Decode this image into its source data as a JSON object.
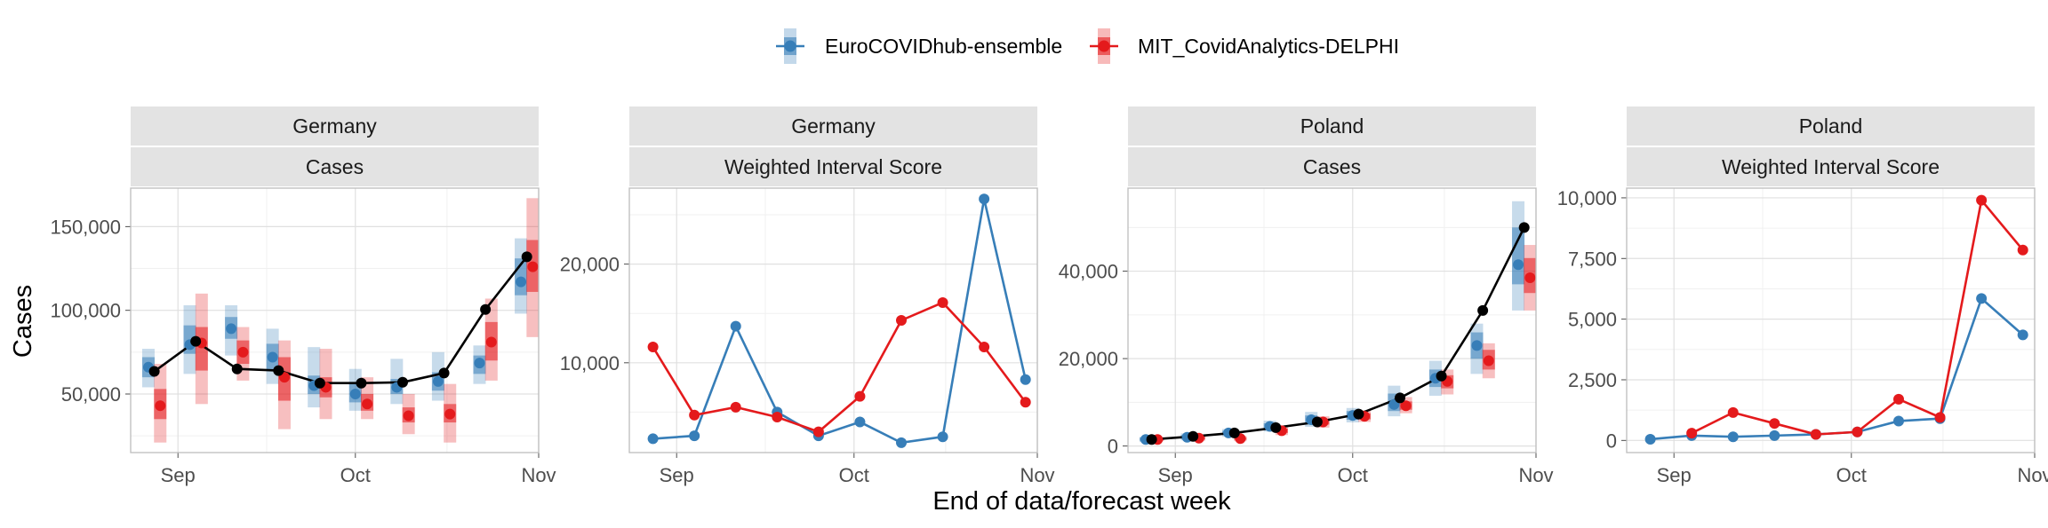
{
  "legend": {
    "items": [
      {
        "label": "EuroCOVIDhub-ensemble",
        "color": "#377eb8"
      },
      {
        "label": "MIT_CovidAnalytics-DELPHI",
        "color": "#e41a1c"
      }
    ]
  },
  "axes": {
    "xlabel": "End of data/forecast week",
    "ylabel": "Cases"
  },
  "chart_data": [
    {
      "type": "line",
      "strip": [
        "Germany",
        "Cases"
      ],
      "x_ticks": [
        {
          "label": "Sep",
          "date": "2021-09-01"
        },
        {
          "label": "Oct",
          "date": "2021-10-01"
        },
        {
          "label": "Nov",
          "date": "2021-11-01"
        }
      ],
      "x_range": [
        "2021-08-24",
        "2021-11-01"
      ],
      "ylim": [
        15000,
        173000
      ],
      "y_ticks": [
        {
          "value": 50000,
          "label": "50,000"
        },
        {
          "value": 100000,
          "label": "100,000"
        },
        {
          "value": 150000,
          "label": "150,000"
        }
      ],
      "observed": {
        "color": "#000000",
        "x": [
          "2021-08-28",
          "2021-09-04",
          "2021-09-11",
          "2021-09-18",
          "2021-09-25",
          "2021-10-02",
          "2021-10-09",
          "2021-10-16",
          "2021-10-23",
          "2021-10-30"
        ],
        "y": [
          63500,
          81500,
          65000,
          64000,
          56500,
          56500,
          57000,
          62500,
          100500,
          132000
        ]
      },
      "series": [
        {
          "name": "EuroCOVIDhub-ensemble",
          "x": [
            "2021-08-27",
            "2021-09-03",
            "2021-09-10",
            "2021-09-17",
            "2021-09-24",
            "2021-10-01",
            "2021-10-08",
            "2021-10-15",
            "2021-10-22",
            "2021-10-29"
          ],
          "median": [
            66000,
            79500,
            89000,
            72000,
            55000,
            50000,
            54000,
            57500,
            68500,
            117000
          ],
          "q50": [
            [
              60000,
              72000
            ],
            [
              74000,
              91000
            ],
            [
              83000,
              96000
            ],
            [
              64000,
              80000
            ],
            [
              50000,
              61000
            ],
            [
              45000,
              56000
            ],
            [
              50000,
              59000
            ],
            [
              52000,
              63000
            ],
            [
              62000,
              73000
            ],
            [
              109000,
              131000
            ]
          ],
          "q90": [
            [
              54000,
              77000
            ],
            [
              62000,
              103000
            ],
            [
              73000,
              103000
            ],
            [
              56000,
              89000
            ],
            [
              42000,
              78000
            ],
            [
              40000,
              65000
            ],
            [
              44000,
              71000
            ],
            [
              46000,
              75000
            ],
            [
              56000,
              79000
            ],
            [
              98000,
              143000
            ]
          ]
        },
        {
          "name": "MIT_CovidAnalytics-DELPHI",
          "x": [
            "2021-08-29",
            "2021-09-05",
            "2021-09-12",
            "2021-09-19",
            "2021-09-26",
            "2021-10-03",
            "2021-10-10",
            "2021-10-17",
            "2021-10-24",
            "2021-10-31"
          ],
          "median": [
            43000,
            80500,
            75000,
            60000,
            54000,
            44000,
            37000,
            38000,
            81000,
            126000
          ],
          "q50": [
            [
              35000,
              53000
            ],
            [
              64000,
              90000
            ],
            [
              68000,
              82000
            ],
            [
              46000,
              72000
            ],
            [
              48000,
              60000
            ],
            [
              40000,
              50000
            ],
            [
              33000,
              42000
            ],
            [
              33000,
              44000
            ],
            [
              70000,
              93000
            ],
            [
              111000,
              142000
            ]
          ],
          "q90": [
            [
              21000,
              68000
            ],
            [
              44000,
              110000
            ],
            [
              58000,
              90000
            ],
            [
              29000,
              82000
            ],
            [
              35000,
              77000
            ],
            [
              35000,
              60000
            ],
            [
              26000,
              50000
            ],
            [
              21000,
              56000
            ],
            [
              58000,
              107000
            ],
            [
              84000,
              167000
            ]
          ]
        }
      ]
    },
    {
      "type": "line",
      "strip": [
        "Germany",
        "Weighted Interval Score"
      ],
      "x_ticks": [
        {
          "label": "Sep",
          "date": "2021-09-01"
        },
        {
          "label": "Oct",
          "date": "2021-10-01"
        },
        {
          "label": "Nov",
          "date": "2021-11-01"
        }
      ],
      "x_range": [
        "2021-08-24",
        "2021-11-01"
      ],
      "ylim": [
        900,
        27700
      ],
      "y_ticks": [
        {
          "value": 10000,
          "label": "10,000"
        },
        {
          "value": 20000,
          "label": "20,000"
        }
      ],
      "series": [
        {
          "name": "EuroCOVIDhub-ensemble",
          "x": [
            "2021-08-28",
            "2021-09-04",
            "2021-09-11",
            "2021-09-18",
            "2021-09-25",
            "2021-10-02",
            "2021-10-09",
            "2021-10-16",
            "2021-10-23",
            "2021-10-30"
          ],
          "y": [
            2300,
            2600,
            13700,
            5000,
            2600,
            4000,
            1900,
            2500,
            26600,
            8300
          ]
        },
        {
          "name": "MIT_CovidAnalytics-DELPHI",
          "x": [
            "2021-08-28",
            "2021-09-04",
            "2021-09-11",
            "2021-09-18",
            "2021-09-25",
            "2021-10-02",
            "2021-10-09",
            "2021-10-16",
            "2021-10-23",
            "2021-10-30"
          ],
          "y": [
            11600,
            4700,
            5500,
            4500,
            3000,
            6600,
            14300,
            16100,
            11600,
            6000
          ]
        }
      ]
    },
    {
      "type": "line",
      "strip": [
        "Poland",
        "Cases"
      ],
      "x_ticks": [
        {
          "label": "Sep",
          "date": "2021-09-01"
        },
        {
          "label": "Oct",
          "date": "2021-10-01"
        },
        {
          "label": "Nov",
          "date": "2021-11-01"
        }
      ],
      "x_range": [
        "2021-08-24",
        "2021-11-01"
      ],
      "ylim": [
        -1500,
        59000
      ],
      "y_ticks": [
        {
          "value": 0,
          "label": "0"
        },
        {
          "value": 20000,
          "label": "20,000"
        },
        {
          "value": 40000,
          "label": "40,000"
        }
      ],
      "observed": {
        "color": "#000000",
        "x": [
          "2021-08-28",
          "2021-09-04",
          "2021-09-11",
          "2021-09-18",
          "2021-09-25",
          "2021-10-02",
          "2021-10-09",
          "2021-10-16",
          "2021-10-23",
          "2021-10-30"
        ],
        "y": [
          1500,
          2200,
          3000,
          4200,
          5500,
          7300,
          11000,
          16000,
          31000,
          50000
        ]
      },
      "series": [
        {
          "name": "EuroCOVIDhub-ensemble",
          "x": [
            "2021-08-27",
            "2021-09-03",
            "2021-09-10",
            "2021-09-17",
            "2021-09-24",
            "2021-10-01",
            "2021-10-08",
            "2021-10-15",
            "2021-10-22",
            "2021-10-29"
          ],
          "median": [
            1500,
            2000,
            3000,
            4500,
            6000,
            7000,
            9500,
            15500,
            23000,
            41500
          ],
          "q50": [
            [
              1200,
              1900
            ],
            [
              1600,
              2500
            ],
            [
              2500,
              3500
            ],
            [
              3800,
              5200
            ],
            [
              5000,
              7000
            ],
            [
              6000,
              8000
            ],
            [
              8000,
              12000
            ],
            [
              13500,
              17500
            ],
            [
              20000,
              26000
            ],
            [
              37000,
              50000
            ]
          ],
          "q90": [
            [
              900,
              2100
            ],
            [
              1300,
              2900
            ],
            [
              2100,
              3900
            ],
            [
              3300,
              5800
            ],
            [
              4400,
              7800
            ],
            [
              5400,
              8700
            ],
            [
              6800,
              13800
            ],
            [
              11500,
              19500
            ],
            [
              16500,
              28000
            ],
            [
              31000,
              56000
            ]
          ]
        },
        {
          "name": "MIT_CovidAnalytics-DELPHI",
          "x": [
            "2021-08-29",
            "2021-09-05",
            "2021-09-12",
            "2021-09-19",
            "2021-09-26",
            "2021-10-03",
            "2021-10-10",
            "2021-10-17",
            "2021-10-24",
            "2021-10-31"
          ],
          "median": [
            1500,
            1800,
            1700,
            3500,
            5500,
            6800,
            9200,
            14800,
            19500,
            38500
          ],
          "q50": [
            [
              1300,
              1800
            ],
            [
              1500,
              2200
            ],
            [
              1400,
              2000
            ],
            [
              3000,
              4000
            ],
            [
              4900,
              6200
            ],
            [
              6100,
              7500
            ],
            [
              8300,
              10200
            ],
            [
              13200,
              16200
            ],
            [
              17500,
              22000
            ],
            [
              35000,
              43000
            ]
          ],
          "q90": [
            [
              1100,
              2000
            ],
            [
              1200,
              2600
            ],
            [
              1100,
              2300
            ],
            [
              2500,
              4500
            ],
            [
              4200,
              6800
            ],
            [
              5500,
              8200
            ],
            [
              7500,
              11200
            ],
            [
              11800,
              17500
            ],
            [
              15500,
              23500
            ],
            [
              31000,
              46000
            ]
          ]
        }
      ]
    },
    {
      "type": "line",
      "strip": [
        "Poland",
        "Weighted Interval Score"
      ],
      "x_ticks": [
        {
          "label": "Sep",
          "date": "2021-09-01"
        },
        {
          "label": "Oct",
          "date": "2021-10-01"
        },
        {
          "label": "Nov",
          "date": "2021-11-01"
        }
      ],
      "x_range": [
        "2021-08-24",
        "2021-11-01"
      ],
      "ylim": [
        -500,
        10400
      ],
      "y_ticks": [
        {
          "value": 0,
          "label": "0"
        },
        {
          "value": 2500,
          "label": "2,500"
        },
        {
          "value": 5000,
          "label": "5,000"
        },
        {
          "value": 7500,
          "label": "7,500"
        },
        {
          "value": 10000,
          "label": "10,000"
        }
      ],
      "series": [
        {
          "name": "EuroCOVIDhub-ensemble",
          "x": [
            "2021-08-28",
            "2021-09-04",
            "2021-09-11",
            "2021-09-18",
            "2021-09-25",
            "2021-10-02",
            "2021-10-09",
            "2021-10-16",
            "2021-10-23",
            "2021-10-30"
          ],
          "y": [
            50,
            200,
            150,
            200,
            250,
            350,
            800,
            900,
            5850,
            4350
          ]
        },
        {
          "name": "MIT_CovidAnalytics-DELPHI",
          "x": [
            "2021-09-04",
            "2021-09-11",
            "2021-09-18",
            "2021-09-25",
            "2021-10-02",
            "2021-10-09",
            "2021-10-16",
            "2021-10-23",
            "2021-10-30"
          ],
          "y": [
            300,
            1150,
            700,
            250,
            350,
            1700,
            950,
            9900,
            7850
          ]
        }
      ]
    }
  ]
}
